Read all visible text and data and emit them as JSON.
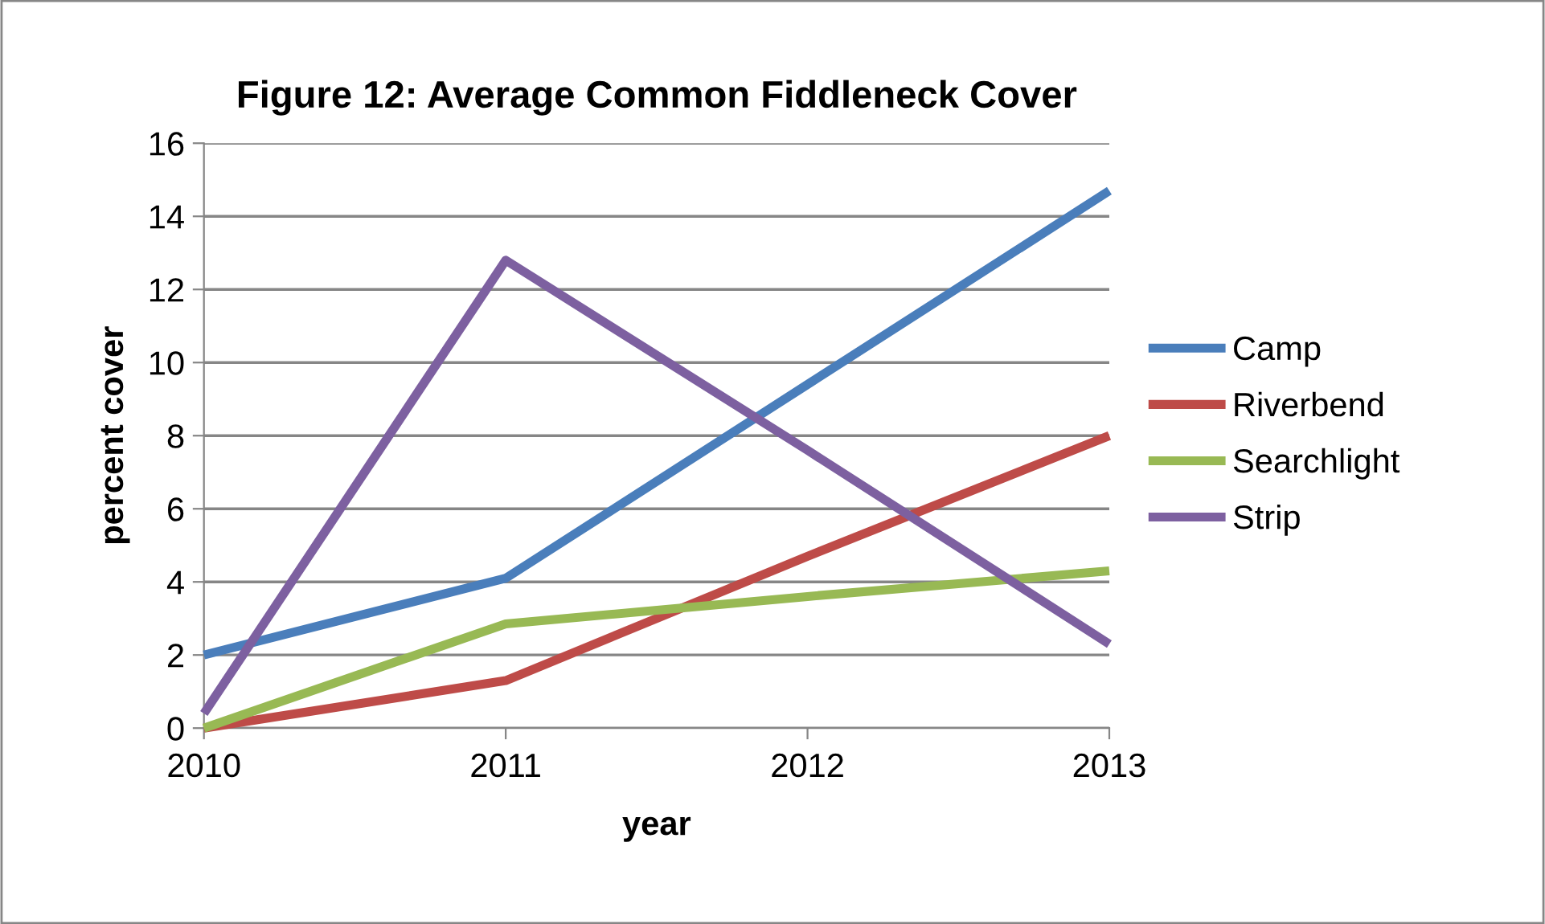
{
  "chart_data": {
    "type": "line",
    "title": "Figure 12: Average Common Fiddleneck Cover",
    "xlabel": "year",
    "ylabel": "percent cover",
    "x": [
      2010,
      2011,
      2012,
      2013
    ],
    "series": [
      {
        "name": "Camp",
        "color": "#4a7ebb",
        "values": [
          2.0,
          4.1,
          9.4,
          14.7
        ]
      },
      {
        "name": "Riverbend",
        "color": "#be4b48",
        "values": [
          0,
          1.3,
          4.7,
          8.0
        ]
      },
      {
        "name": "Searchlight",
        "color": "#98b954",
        "values": [
          0,
          2.85,
          3.6,
          4.3
        ]
      },
      {
        "name": "Strip",
        "color": "#7d60a0",
        "values": [
          0.4,
          12.8,
          7.6,
          2.3
        ]
      }
    ],
    "xlim": [
      2010,
      2013
    ],
    "xticks": [
      2010,
      2011,
      2012,
      2013
    ],
    "ylim": [
      0,
      16
    ],
    "yticks": [
      0,
      2,
      4,
      6,
      8,
      10,
      12,
      14,
      16
    ],
    "grid": "y",
    "legend": "right",
    "marker": "none",
    "line_style": "solid"
  }
}
